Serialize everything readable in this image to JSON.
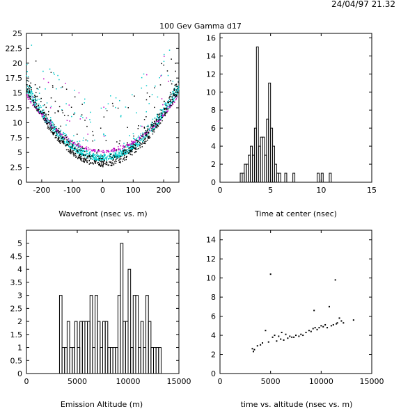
{
  "header": {
    "timestamp": "24/04/97   21.32",
    "title": "100 Gev Gamma d17"
  },
  "chart_data": [
    {
      "type": "scatter",
      "xlabel": "Wavefront (nsec vs. m)",
      "xlim": [
        -250,
        250
      ],
      "ylim": [
        0,
        25
      ],
      "xticks": [
        -200,
        -100,
        0,
        100,
        200
      ],
      "yticks": [
        0,
        2.5,
        5,
        7.5,
        10,
        12.5,
        15,
        17.5,
        20,
        22.5,
        25
      ],
      "ytick_labels": [
        "0",
        "2.5",
        "5",
        "7.5",
        "10",
        "12.5",
        "15",
        "17.5",
        "20",
        "22.5",
        "25"
      ],
      "series": [
        {
          "color": "#00c8c8",
          "a": 0.000185,
          "b": 3.6,
          "spread": 0.9,
          "count": 950
        },
        {
          "color": "#c000c0",
          "a": 0.00015,
          "b": 5.0,
          "spread": 0.35,
          "count": 260
        },
        {
          "color": "#000000",
          "a": 0.0002,
          "b": 2.6,
          "spread": 1.4,
          "count": 650
        }
      ]
    },
    {
      "type": "histogram",
      "xlabel": "Time at center (nsec)",
      "xlim": [
        0,
        15
      ],
      "ylim": [
        0,
        16.5
      ],
      "xticks": [
        0,
        5,
        10,
        15
      ],
      "yticks": [
        0,
        2,
        4,
        6,
        8,
        10,
        12,
        14,
        16
      ],
      "bin_width": 0.2,
      "bins": [
        [
          2.0,
          1
        ],
        [
          2.2,
          1
        ],
        [
          2.4,
          2
        ],
        [
          2.6,
          2
        ],
        [
          2.8,
          3
        ],
        [
          3.0,
          4
        ],
        [
          3.2,
          3
        ],
        [
          3.4,
          6
        ],
        [
          3.6,
          15
        ],
        [
          3.8,
          4
        ],
        [
          4.0,
          5
        ],
        [
          4.2,
          5
        ],
        [
          4.4,
          3
        ],
        [
          4.6,
          7
        ],
        [
          4.8,
          11
        ],
        [
          5.0,
          6
        ],
        [
          5.2,
          4
        ],
        [
          5.4,
          2
        ],
        [
          5.6,
          1
        ],
        [
          5.8,
          1
        ],
        [
          6.4,
          1
        ],
        [
          7.2,
          1
        ],
        [
          9.6,
          1
        ],
        [
          10.0,
          1
        ],
        [
          10.8,
          1
        ]
      ]
    },
    {
      "type": "histogram",
      "xlabel": "Emission Altitude (m)",
      "xlim": [
        0,
        15000
      ],
      "ylim": [
        0,
        5.5
      ],
      "xticks": [
        0,
        5000,
        10000,
        15000
      ],
      "yticks": [
        0,
        0.5,
        1,
        1.5,
        2,
        2.5,
        3,
        3.5,
        4,
        4.5,
        5
      ],
      "ytick_labels": [
        "0",
        "0.5",
        "1",
        "1.5",
        "2",
        "2.5",
        "3",
        "3.5",
        "4",
        "4.5",
        "5"
      ],
      "bin_width": 250,
      "bins": [
        [
          3250,
          3
        ],
        [
          3500,
          1
        ],
        [
          3750,
          1
        ],
        [
          4000,
          2
        ],
        [
          4250,
          1
        ],
        [
          4500,
          1
        ],
        [
          4750,
          2
        ],
        [
          5000,
          1
        ],
        [
          5250,
          2
        ],
        [
          5500,
          2
        ],
        [
          5750,
          2
        ],
        [
          6000,
          2
        ],
        [
          6250,
          3
        ],
        [
          6500,
          1
        ],
        [
          6750,
          3
        ],
        [
          7000,
          2
        ],
        [
          7250,
          1
        ],
        [
          7500,
          2
        ],
        [
          7750,
          2
        ],
        [
          8000,
          1
        ],
        [
          8250,
          1
        ],
        [
          8500,
          1
        ],
        [
          8750,
          1
        ],
        [
          9000,
          3
        ],
        [
          9250,
          5
        ],
        [
          9500,
          2
        ],
        [
          9750,
          2
        ],
        [
          10000,
          4
        ],
        [
          10250,
          1
        ],
        [
          10500,
          3
        ],
        [
          10750,
          3
        ],
        [
          11000,
          1
        ],
        [
          11250,
          2
        ],
        [
          11500,
          1
        ],
        [
          11750,
          3
        ],
        [
          12000,
          2
        ],
        [
          12250,
          1
        ],
        [
          12500,
          1
        ],
        [
          12750,
          1
        ],
        [
          13000,
          1
        ]
      ]
    },
    {
      "type": "scatter",
      "xlabel": "time vs. altitude (nsec vs. m)",
      "xlim": [
        0,
        15000
      ],
      "ylim": [
        0,
        15
      ],
      "xticks": [
        0,
        5000,
        10000,
        15000
      ],
      "yticks": [
        0,
        2,
        4,
        6,
        8,
        10,
        12,
        14
      ],
      "points": [
        [
          3200,
          2.6
        ],
        [
          3300,
          2.3
        ],
        [
          3400,
          2.5
        ],
        [
          3700,
          2.9
        ],
        [
          4000,
          3.0
        ],
        [
          4200,
          3.2
        ],
        [
          4500,
          4.5
        ],
        [
          4800,
          3.3
        ],
        [
          5000,
          10.4
        ],
        [
          5200,
          3.8
        ],
        [
          5400,
          4.0
        ],
        [
          5600,
          3.4
        ],
        [
          5800,
          3.9
        ],
        [
          6000,
          3.6
        ],
        [
          6100,
          4.3
        ],
        [
          6300,
          3.5
        ],
        [
          6500,
          4.1
        ],
        [
          6700,
          3.7
        ],
        [
          6900,
          3.9
        ],
        [
          7100,
          3.8
        ],
        [
          7300,
          3.8
        ],
        [
          7500,
          4.0
        ],
        [
          7800,
          3.9
        ],
        [
          8000,
          4.1
        ],
        [
          8200,
          4.0
        ],
        [
          8500,
          4.3
        ],
        [
          8800,
          4.5
        ],
        [
          9000,
          4.4
        ],
        [
          9200,
          4.7
        ],
        [
          9300,
          6.6
        ],
        [
          9400,
          4.8
        ],
        [
          9600,
          4.6
        ],
        [
          9800,
          4.8
        ],
        [
          10000,
          5.0
        ],
        [
          10200,
          4.9
        ],
        [
          10400,
          5.1
        ],
        [
          10600,
          4.8
        ],
        [
          10800,
          7.0
        ],
        [
          11000,
          5.0
        ],
        [
          11200,
          5.1
        ],
        [
          11400,
          9.8
        ],
        [
          11500,
          5.2
        ],
        [
          11600,
          5.3
        ],
        [
          11800,
          5.8
        ],
        [
          12000,
          5.5
        ],
        [
          12200,
          5.3
        ],
        [
          13200,
          5.6
        ]
      ]
    }
  ]
}
